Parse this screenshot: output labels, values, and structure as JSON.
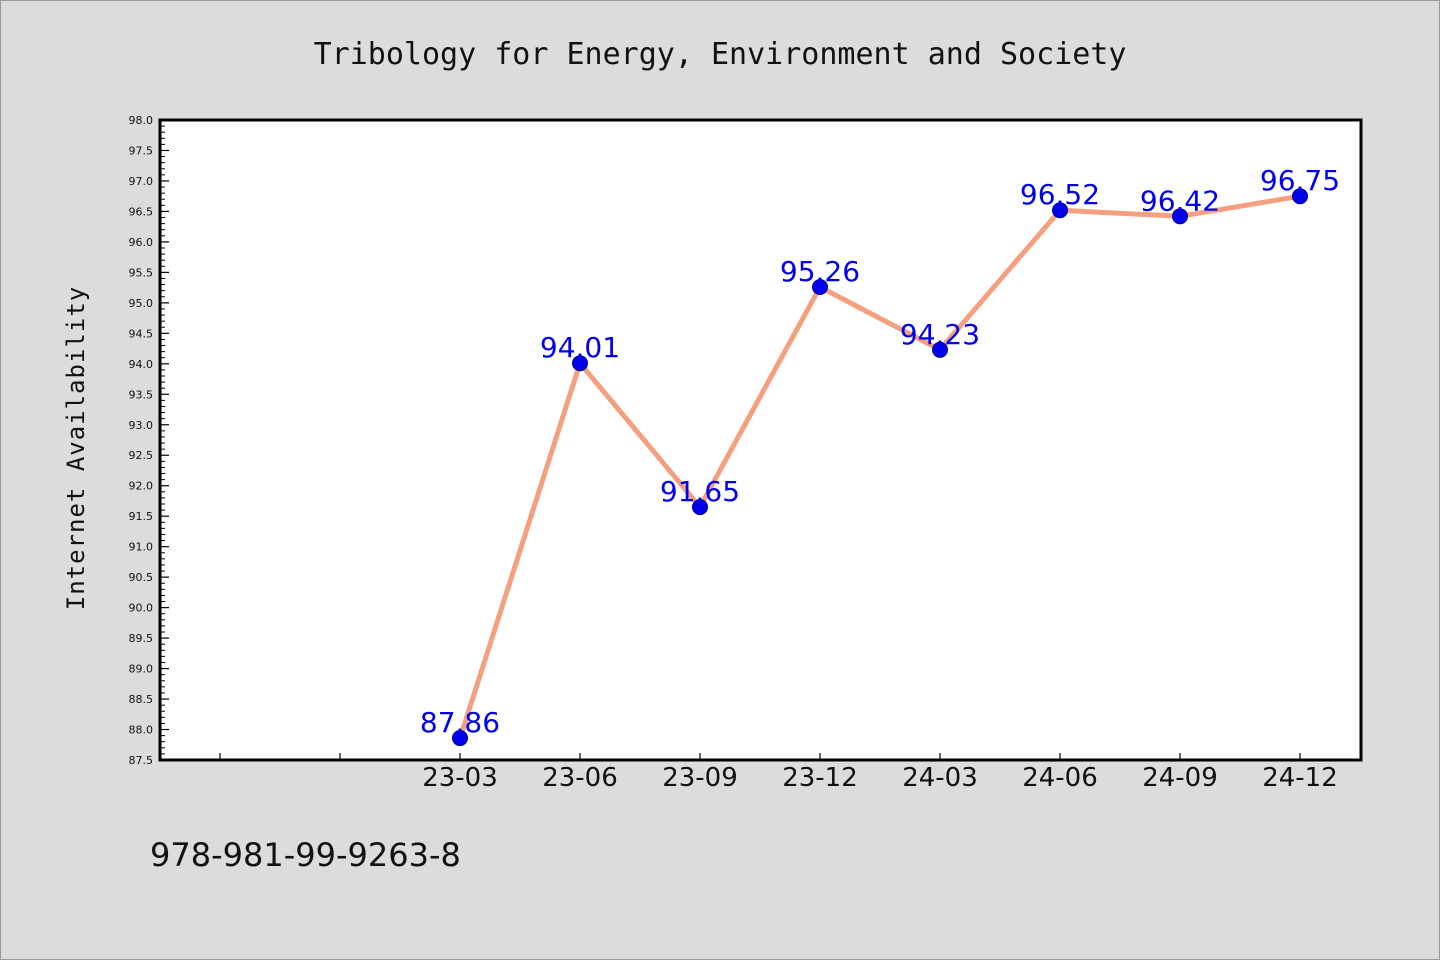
{
  "page": {
    "isbn": "978-981-99-9263-8"
  },
  "chart_data": {
    "type": "line",
    "title": "Tribology for Energy, Environment and Society",
    "xlabel": "",
    "ylabel": "Internet Availability",
    "categories": [
      "",
      "",
      "23-03",
      "23-06",
      "23-09",
      "23-12",
      "24-03",
      "24-06",
      "24-09",
      "24-12"
    ],
    "series": [
      {
        "values": [
          null,
          null,
          87.86,
          94.01,
          91.65,
          95.26,
          94.23,
          96.52,
          96.42,
          96.75
        ],
        "data_labels": [
          "",
          "",
          "87.86",
          "94.01",
          "91.65",
          "95.26",
          "94.23",
          "96.52",
          "96.42",
          "96.75"
        ]
      }
    ],
    "ylim": [
      87.5,
      98.0
    ],
    "yticks": [
      "87.5",
      "88.0",
      "88.5",
      "89.0",
      "89.5",
      "90.0",
      "90.5",
      "91.0",
      "91.5",
      "92.0",
      "92.5",
      "93.0",
      "93.5",
      "94.0",
      "94.5",
      "95.0",
      "95.5",
      "96.0",
      "96.5",
      "97.0",
      "97.5",
      "98.0"
    ],
    "grid": false,
    "legend": "none",
    "colors": {
      "line": "#f4a07e",
      "marker": "#0000ee",
      "marker_edge": "#00008b",
      "data_label": "#0000ee",
      "plot_background": "#ffffff",
      "figure_background": "#dcdcdc"
    }
  }
}
